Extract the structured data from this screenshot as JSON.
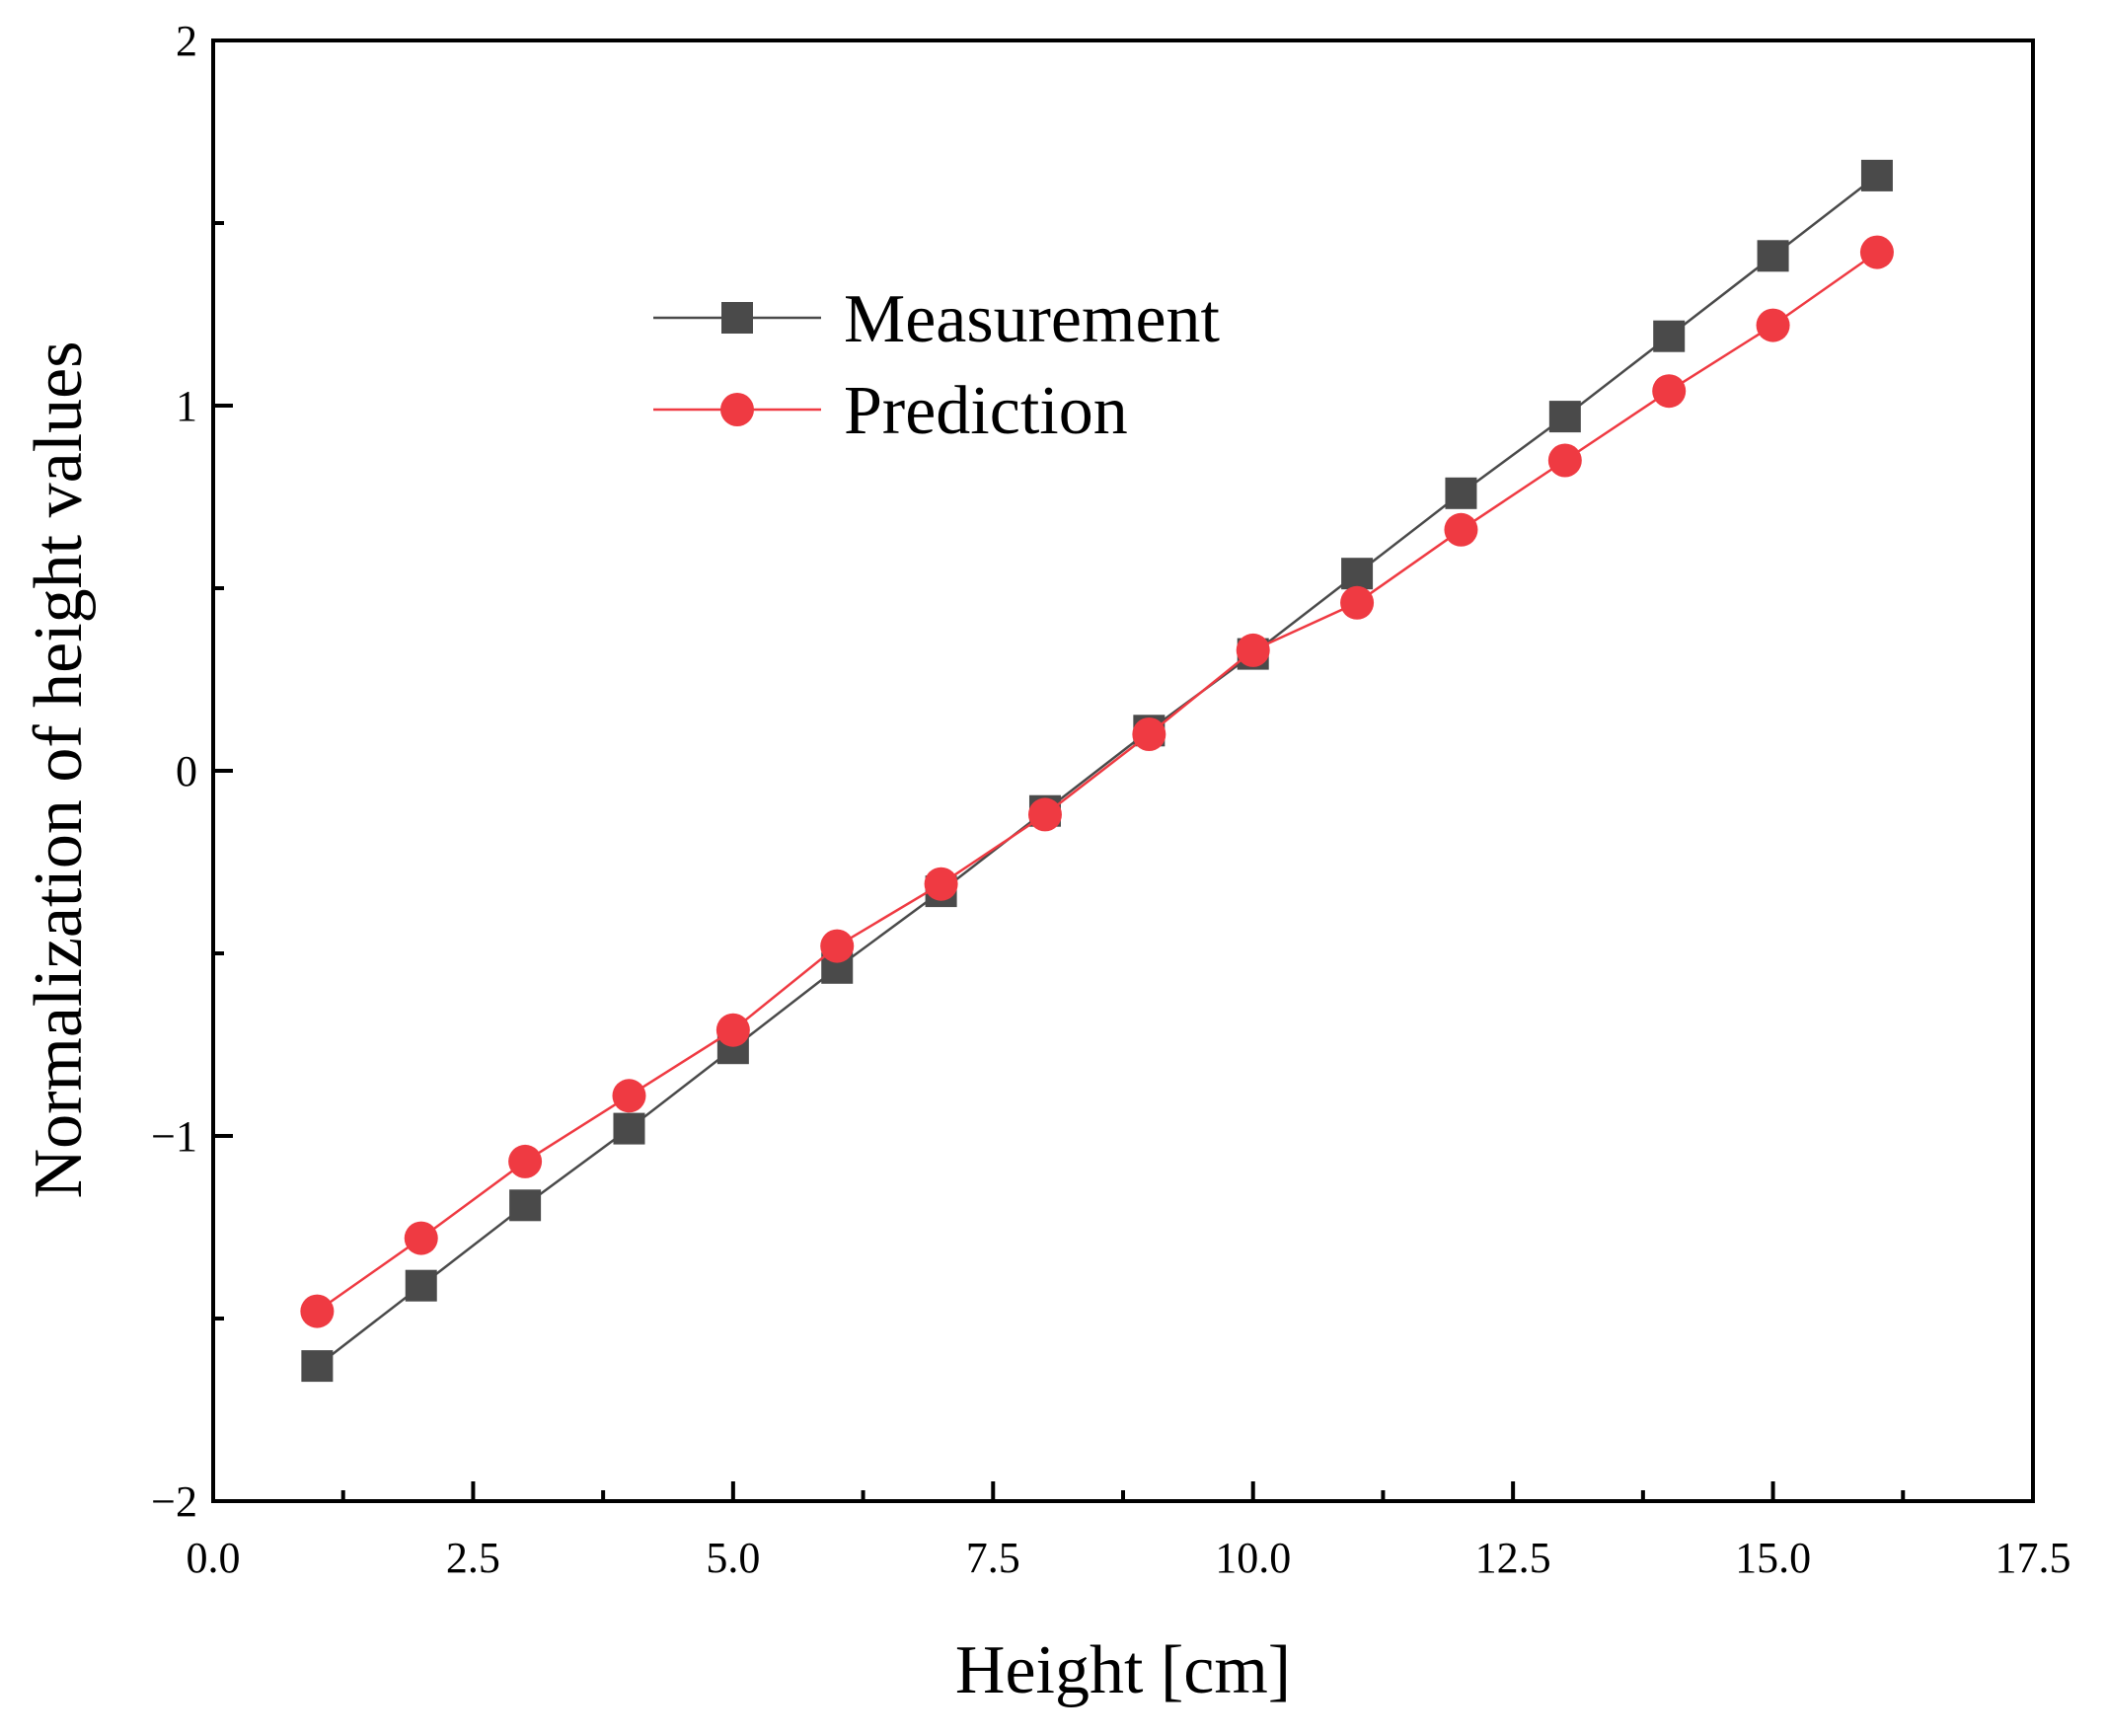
{
  "chart_data": {
    "type": "line",
    "title": "",
    "xlabel": "Height [cm]",
    "ylabel": "Normalization of height values",
    "xlim": [
      0,
      17.5
    ],
    "ylim": [
      -2,
      2
    ],
    "xticks": [
      0.0,
      2.5,
      5.0,
      7.5,
      10.0,
      12.5,
      15.0,
      17.5
    ],
    "xtick_labels": [
      "0.0",
      "2.5",
      "5.0",
      "7.5",
      "10.0",
      "12.5",
      "15.0",
      "17.5"
    ],
    "yticks": [
      -2,
      -1,
      0,
      1,
      2
    ],
    "ytick_labels": [
      "−2",
      "−1",
      "0",
      "1",
      "2"
    ],
    "grid": false,
    "legend_position": "upper-center",
    "x": [
      1,
      2,
      3,
      4,
      5,
      6,
      7,
      8,
      9,
      10,
      11,
      12,
      13,
      14,
      15,
      16
    ],
    "series": [
      {
        "name": "Measurement",
        "marker": "square",
        "color": "#4a4a4a",
        "values": [
          -1.63,
          -1.41,
          -1.19,
          -0.98,
          -0.76,
          -0.54,
          -0.33,
          -0.11,
          0.11,
          0.32,
          0.54,
          0.76,
          0.97,
          1.19,
          1.41,
          1.63
        ]
      },
      {
        "name": "Prediction",
        "marker": "circle",
        "color": "#ef3a42",
        "values": [
          -1.48,
          -1.28,
          -1.07,
          -0.89,
          -0.71,
          -0.48,
          -0.31,
          -0.12,
          0.1,
          0.33,
          0.46,
          0.66,
          0.85,
          1.04,
          1.22,
          1.42
        ]
      }
    ]
  }
}
